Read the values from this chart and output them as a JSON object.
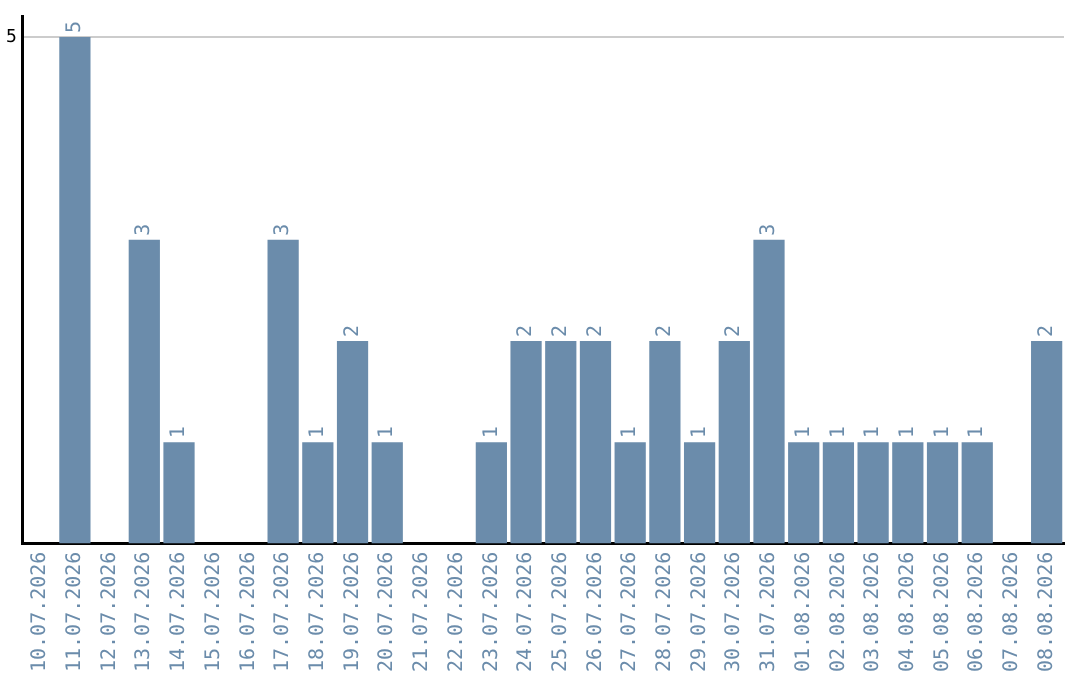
{
  "chart_data": {
    "type": "bar",
    "categories": [
      "10.07.2026",
      "11.07.2026",
      "12.07.2026",
      "13.07.2026",
      "14.07.2026",
      "15.07.2026",
      "16.07.2026",
      "17.07.2026",
      "18.07.2026",
      "19.07.2026",
      "20.07.2026",
      "21.07.2026",
      "22.07.2026",
      "23.07.2026",
      "24.07.2026",
      "25.07.2026",
      "26.07.2026",
      "27.07.2026",
      "28.07.2026",
      "29.07.2026",
      "30.07.2026",
      "31.07.2026",
      "01.08.2026",
      "02.08.2026",
      "03.08.2026",
      "04.08.2026",
      "05.08.2026",
      "06.08.2026",
      "07.08.2026",
      "08.08.2026"
    ],
    "values": [
      0,
      5,
      0,
      3,
      1,
      0,
      0,
      3,
      1,
      2,
      1,
      0,
      0,
      1,
      2,
      2,
      2,
      1,
      2,
      1,
      2,
      3,
      1,
      1,
      1,
      1,
      1,
      1,
      0,
      2
    ],
    "value_labels": [
      null,
      "5",
      null,
      "3",
      "1",
      null,
      null,
      "3",
      "1",
      "2",
      "1",
      null,
      null,
      "1",
      "2",
      "2",
      "2",
      "1",
      "2",
      "1",
      "2",
      "3",
      "1",
      "1",
      "1",
      "1",
      "1",
      "1",
      null,
      "2"
    ],
    "color": "#6b8cab",
    "ylim": [
      0,
      5.2
    ],
    "yticks": [
      5
    ],
    "grid": "y",
    "legend": false
  }
}
